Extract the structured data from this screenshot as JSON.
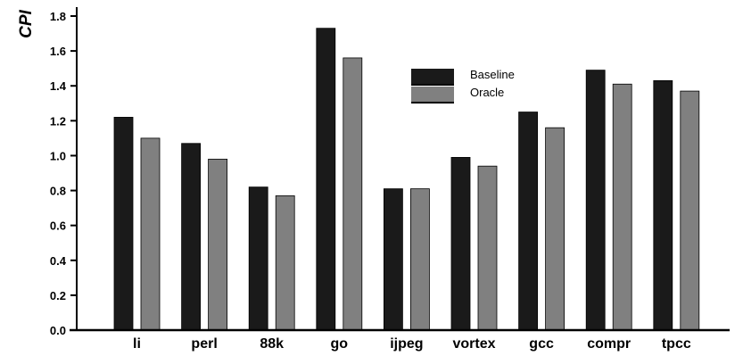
{
  "chart_data": {
    "type": "bar",
    "title": "",
    "xlabel": "",
    "ylabel": "CPI",
    "ylim": [
      0,
      1.8
    ],
    "yticks": [
      "0.0",
      "0.2",
      "0.4",
      "0.6",
      "0.8",
      "1.0",
      "1.2",
      "1.4",
      "1.6",
      "1.8"
    ],
    "categories": [
      "li",
      "perl",
      "88k",
      "go",
      "ijpeg",
      "vortex",
      "gcc",
      "compr",
      "tpcc"
    ],
    "series": [
      {
        "name": "Baseline",
        "color": "#1a1a1a",
        "values": [
          1.22,
          1.07,
          0.82,
          1.73,
          0.81,
          0.99,
          1.25,
          1.49,
          1.43
        ]
      },
      {
        "name": "Oracle",
        "color": "#808080",
        "values": [
          1.1,
          0.98,
          0.77,
          1.56,
          0.81,
          0.94,
          1.16,
          1.41,
          1.37
        ]
      }
    ],
    "grid": false,
    "legend_position": "top-right"
  }
}
